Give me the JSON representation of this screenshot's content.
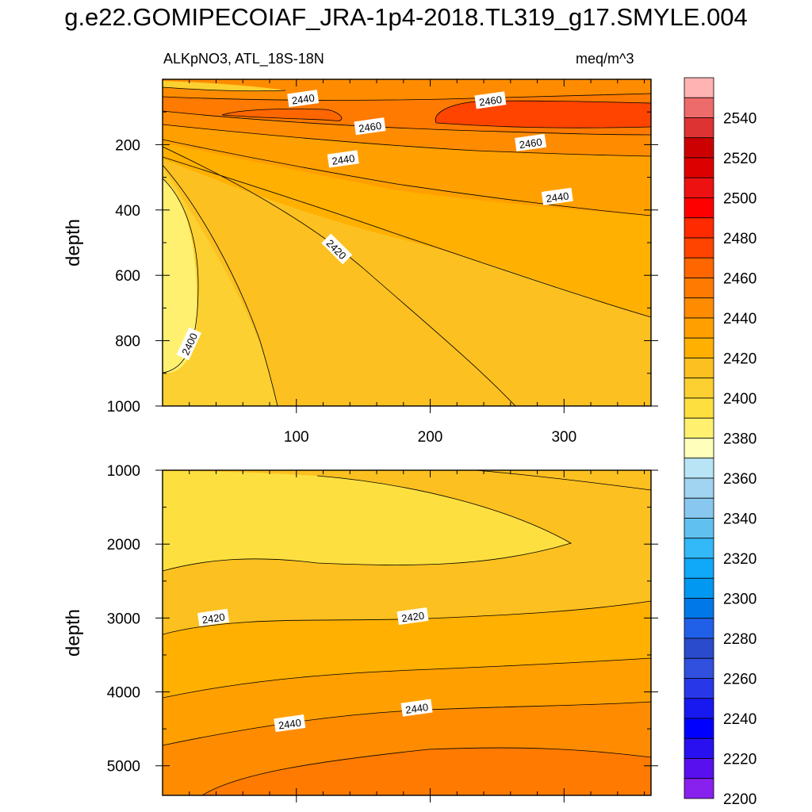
{
  "title": "g.e22.GOMIPECOIAF_JRA-1p4-2018.TL319_g17.SMYLE.004",
  "subtitle_left": "ALKpNO3, ATL_18S-18N",
  "subtitle_right": "meq/m^3",
  "chart_data": [
    {
      "type": "heatmap",
      "panel": "upper",
      "ylabel": "depth",
      "y_reversed": true,
      "xlim": [
        0,
        365
      ],
      "ylim": [
        0,
        1000
      ],
      "x_ticks": [
        100,
        200,
        300
      ],
      "y_ticks": [
        200,
        400,
        600,
        800,
        1000
      ],
      "contour_labels": [
        {
          "text": "2440",
          "x": 105,
          "y": 60
        },
        {
          "text": "2460",
          "x": 245,
          "y": 65
        },
        {
          "text": "2460",
          "x": 155,
          "y": 145
        },
        {
          "text": "2460",
          "x": 275,
          "y": 195
        },
        {
          "text": "2440",
          "x": 135,
          "y": 245
        },
        {
          "text": "2440",
          "x": 295,
          "y": 360
        },
        {
          "text": "2420",
          "x": 130,
          "y": 520
        },
        {
          "text": "2400",
          "x": 20,
          "y": 810
        }
      ]
    },
    {
      "type": "heatmap",
      "panel": "lower",
      "ylabel": "depth",
      "y_reversed": true,
      "xlim": [
        0,
        365
      ],
      "ylim": [
        1000,
        5400
      ],
      "x_ticks": [
        100,
        200,
        300
      ],
      "y_ticks": [
        1000,
        2000,
        3000,
        4000,
        5000
      ],
      "contour_labels": [
        {
          "text": "2420",
          "x": 38,
          "y": 3000
        },
        {
          "text": "2420",
          "x": 187,
          "y": 2980
        },
        {
          "text": "2440",
          "x": 95,
          "y": 4430
        },
        {
          "text": "2440",
          "x": 190,
          "y": 4220
        }
      ]
    }
  ],
  "colorbar": {
    "labels": [
      "2540",
      "2520",
      "2500",
      "2480",
      "2460",
      "2440",
      "2420",
      "2400",
      "2380",
      "2360",
      "2340",
      "2320",
      "2300",
      "2280",
      "2260",
      "2240",
      "2220",
      "2200"
    ],
    "colors": [
      "#ffb3b3",
      "#ee6b6b",
      "#dd3333",
      "#cc0000",
      "#dd0000",
      "#ee1111",
      "#ff0000",
      "#ff2a00",
      "#ff4400",
      "#ff6600",
      "#ff7a00",
      "#ff8c00",
      "#ffa000",
      "#ffb000",
      "#fcc020",
      "#fcd030",
      "#fde040",
      "#fff070",
      "#ffffbb",
      "#b8e4f5",
      "#a0d4f0",
      "#88c8f0",
      "#60c0f0",
      "#33b8f8",
      "#10a8f8",
      "#0098f0",
      "#0078e8",
      "#2060e8",
      "#2a4ccc",
      "#3050dd",
      "#2838e8",
      "#1818f0",
      "#0000ff",
      "#2810f0",
      "#5810ee",
      "#8820ee"
    ]
  }
}
